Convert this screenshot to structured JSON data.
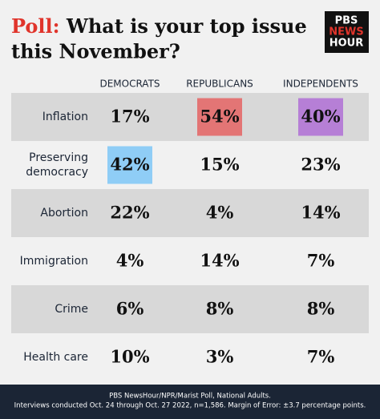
{
  "header": {
    "title_lead": "Poll:",
    "title_lines": [
      "What is your top issue",
      "this November?"
    ],
    "logo": [
      "PBS",
      "NEWS",
      "HOUR"
    ]
  },
  "table": {
    "columns": [
      "DEMOCRATS",
      "REPUBLICANS",
      "INDEPENDENTS"
    ],
    "rows": [
      {
        "label": [
          "Inflation"
        ],
        "cells": [
          "17%",
          "54%",
          "40%"
        ]
      },
      {
        "label": [
          "Preserving",
          "democracy"
        ],
        "cells": [
          "42%",
          "15%",
          "23%"
        ]
      },
      {
        "label": [
          "Abortion"
        ],
        "cells": [
          "22%",
          "4%",
          "14%"
        ]
      },
      {
        "label": [
          "Immigration"
        ],
        "cells": [
          "4%",
          "14%",
          "7%"
        ]
      },
      {
        "label": [
          "Crime"
        ],
        "cells": [
          "6%",
          "8%",
          "8%"
        ]
      },
      {
        "label": [
          "Health care"
        ],
        "cells": [
          "10%",
          "3%",
          "7%"
        ]
      }
    ],
    "highlights": [
      {
        "row": 0,
        "col": 1,
        "color": "#e37575"
      },
      {
        "row": 0,
        "col": 2,
        "color": "#b67fd6"
      },
      {
        "row": 1,
        "col": 0,
        "color": "#8fcdf6"
      }
    ]
  },
  "footer": [
    "PBS NewsHour/NPR/Marist Poll, National Adults.",
    "Interviews conducted Oct. 24 through Oct. 27 2022, n=1,586. Margin of Error: ±3.7 percentage points."
  ]
}
